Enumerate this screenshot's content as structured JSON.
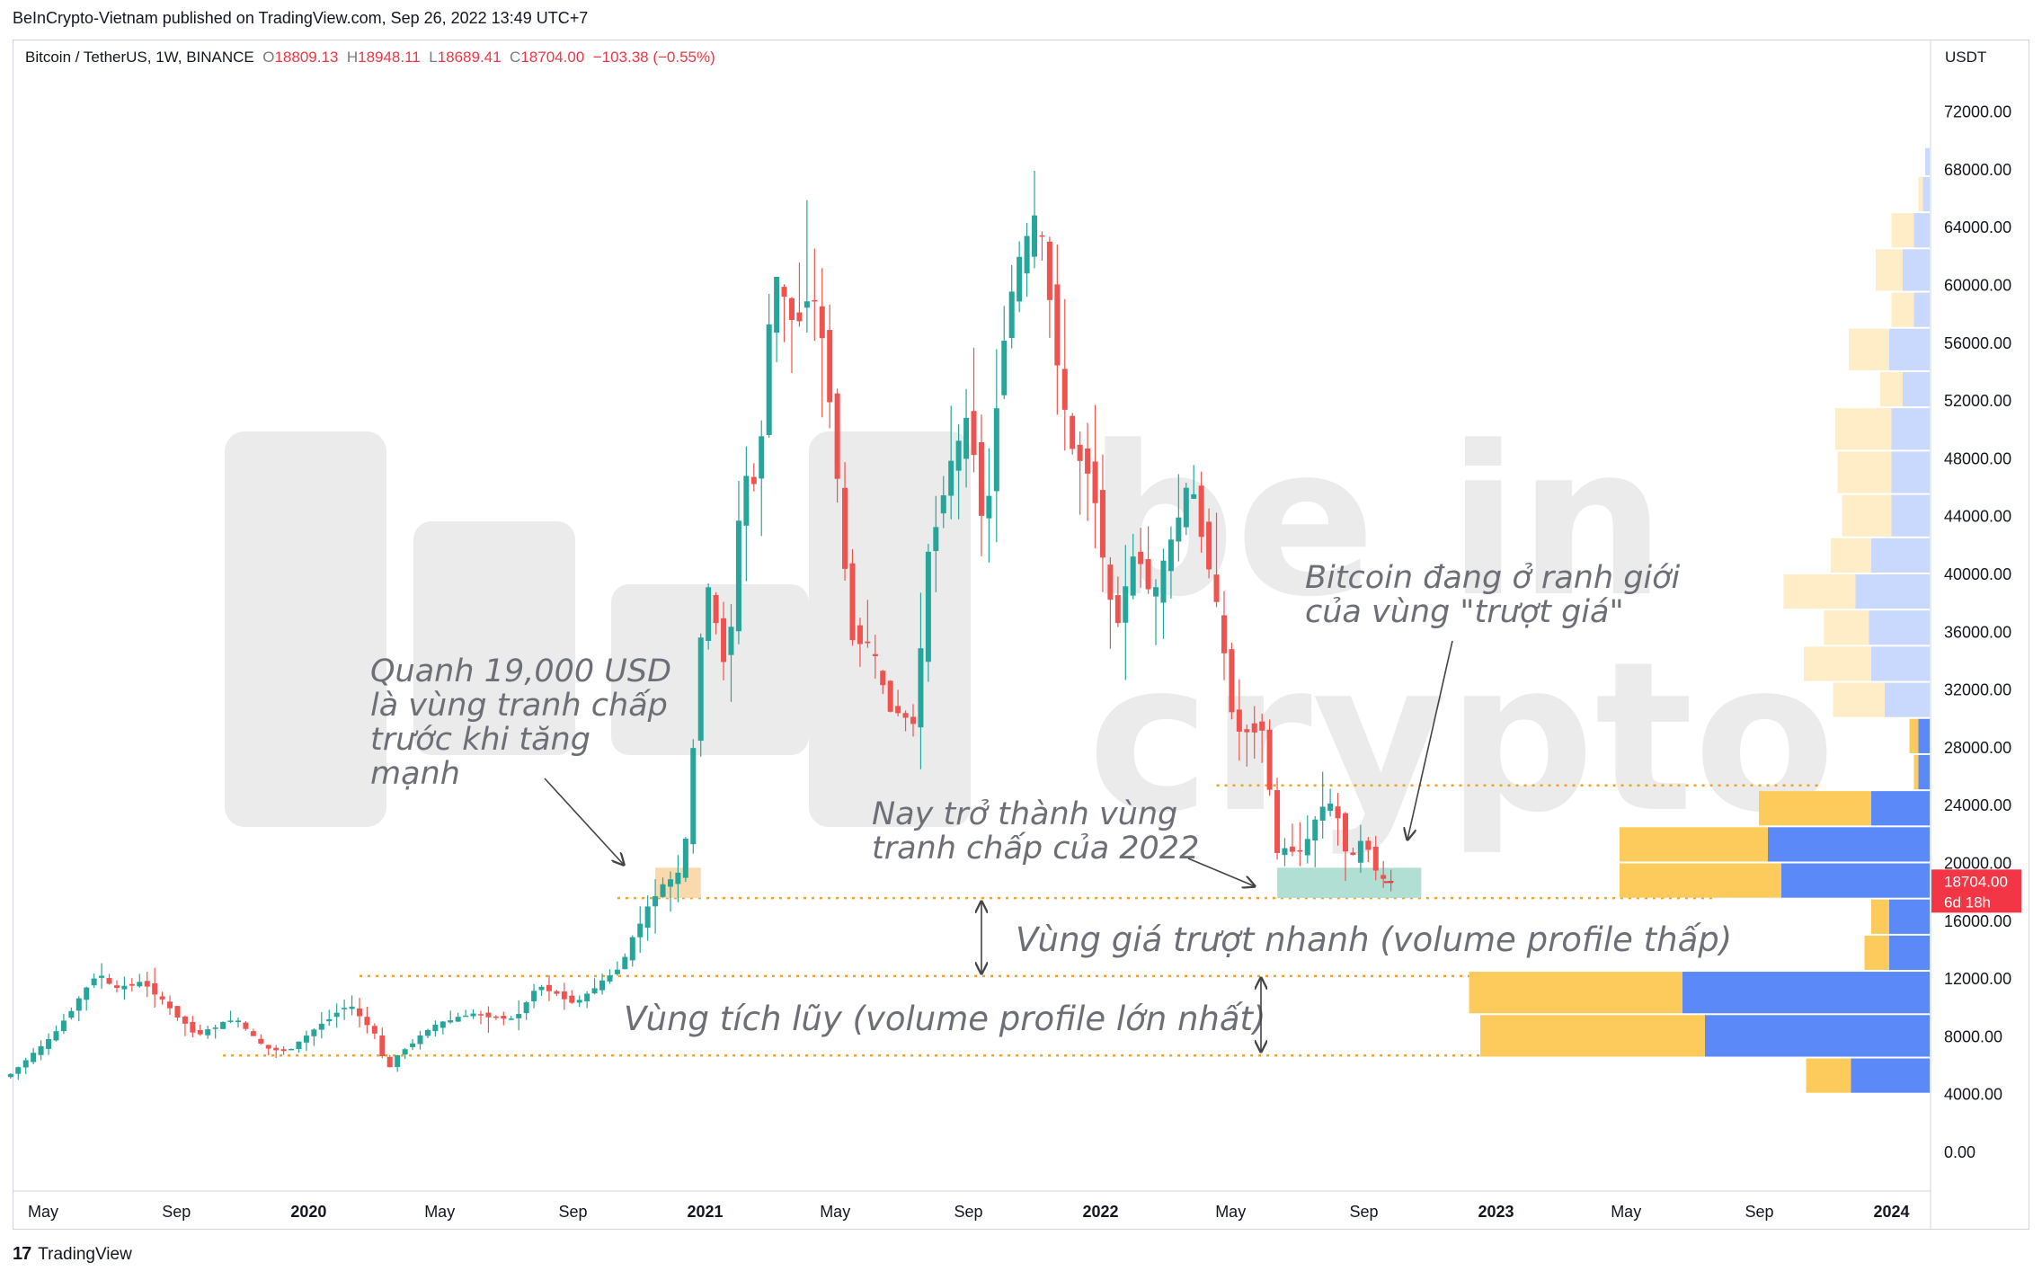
{
  "header": {
    "published": "BeInCrypto-Vietnam published on TradingView.com, Sep 26, 2022 13:49 UTC+7"
  },
  "legend": {
    "symbol": "Bitcoin / TetherUS, 1W, BINANCE",
    "o_label": "O",
    "o_value": "18809.13",
    "h_label": "H",
    "h_value": "18948.11",
    "l_label": "L",
    "l_value": "18689.41",
    "c_label": "C",
    "c_value": "18704.00",
    "change": "−103.38 (−0.55%)"
  },
  "footer": {
    "brand": "TradingView",
    "logo": "17"
  },
  "watermark": {
    "line1": "be in",
    "line2": "crypto"
  },
  "colors": {
    "up": "#26a69a",
    "down": "#ef5350",
    "guide": "#f7a120",
    "vp_up": "#5b8af8",
    "vp_down": "#fccb5c",
    "price_tag": "#f23645"
  },
  "chart_data": {
    "type": "candlestick",
    "title": "Bitcoin / TetherUS, 1W, BINANCE",
    "currency": "USDT",
    "ylim": [
      -2000,
      76000
    ],
    "y_ticks": [
      "72000.00",
      "68000.00",
      "64000.00",
      "60000.00",
      "56000.00",
      "52000.00",
      "48000.00",
      "44000.00",
      "40000.00",
      "36000.00",
      "32000.00",
      "28000.00",
      "24000.00",
      "20000.00",
      "16000.00",
      "12000.00",
      "8000.00",
      "4000.00",
      "0.00"
    ],
    "x_ticks": [
      {
        "label": "May",
        "date": "2019-05"
      },
      {
        "label": "Sep",
        "date": "2019-09"
      },
      {
        "label": "2020",
        "date": "2020-01"
      },
      {
        "label": "May",
        "date": "2020-05"
      },
      {
        "label": "Sep",
        "date": "2020-09"
      },
      {
        "label": "2021",
        "date": "2021-01"
      },
      {
        "label": "May",
        "date": "2021-05"
      },
      {
        "label": "Sep",
        "date": "2021-09"
      },
      {
        "label": "2022",
        "date": "2022-01"
      },
      {
        "label": "May",
        "date": "2022-05"
      },
      {
        "label": "Sep",
        "date": "2022-09"
      },
      {
        "label": "2023",
        "date": "2023-01"
      },
      {
        "label": "May",
        "date": "2023-05"
      },
      {
        "label": "Sep",
        "date": "2023-09"
      },
      {
        "label": "2024",
        "date": "2024-01"
      }
    ],
    "price_tag": {
      "price": "18704.00",
      "countdown": "6d 18h",
      "value": 18704
    },
    "price_path": [
      [
        "2019-04-01",
        5200
      ],
      [
        "2019-05-13",
        8000
      ],
      [
        "2019-06-24",
        12500
      ],
      [
        "2019-07-08",
        11300
      ],
      [
        "2019-08-05",
        11800
      ],
      [
        "2019-09-23",
        8100
      ],
      [
        "2019-10-28",
        9300
      ],
      [
        "2019-11-25",
        7200
      ],
      [
        "2019-12-16",
        7000
      ],
      [
        "2020-01-13",
        8700
      ],
      [
        "2020-02-10",
        10300
      ],
      [
        "2020-03-09",
        7900
      ],
      [
        "2020-03-16",
        5300
      ],
      [
        "2020-03-23",
        6500
      ],
      [
        "2020-04-27",
        8700
      ],
      [
        "2020-06-01",
        9600
      ],
      [
        "2020-07-13",
        9200
      ],
      [
        "2020-08-03",
        11600
      ],
      [
        "2020-09-07",
        10300
      ],
      [
        "2020-10-19",
        12900
      ],
      [
        "2020-11-02",
        15400
      ],
      [
        "2020-11-23",
        18300
      ],
      [
        "2020-12-14",
        19400
      ],
      [
        "2020-12-21",
        23800
      ],
      [
        "2021-01-04",
        40000
      ],
      [
        "2021-01-25",
        33000
      ],
      [
        "2021-02-08",
        47000
      ],
      [
        "2021-02-22",
        46000
      ],
      [
        "2021-03-08",
        61000
      ],
      [
        "2021-03-29",
        57000
      ],
      [
        "2021-04-12",
        60000
      ],
      [
        "2021-04-26",
        55000
      ],
      [
        "2021-05-10",
        44000
      ],
      [
        "2021-05-17",
        36000
      ],
      [
        "2021-06-07",
        35000
      ],
      [
        "2021-06-21",
        31000
      ],
      [
        "2021-07-19",
        29500
      ],
      [
        "2021-07-26",
        40000
      ],
      [
        "2021-08-16",
        47000
      ],
      [
        "2021-09-06",
        51000
      ],
      [
        "2021-09-20",
        42000
      ],
      [
        "2021-10-04",
        55000
      ],
      [
        "2021-10-18",
        61000
      ],
      [
        "2021-11-08",
        65000
      ],
      [
        "2021-11-22",
        57000
      ],
      [
        "2021-12-06",
        49000
      ],
      [
        "2021-12-27",
        47000
      ],
      [
        "2022-01-17",
        36000
      ],
      [
        "2022-02-07",
        42000
      ],
      [
        "2022-02-21",
        38000
      ],
      [
        "2022-03-28",
        46500
      ],
      [
        "2022-04-18",
        39500
      ],
      [
        "2022-05-09",
        29000
      ],
      [
        "2022-06-06",
        29500
      ],
      [
        "2022-06-13",
        20500
      ],
      [
        "2022-06-20",
        21000
      ],
      [
        "2022-07-11",
        20800
      ],
      [
        "2022-07-25",
        23800
      ],
      [
        "2022-08-08",
        24100
      ],
      [
        "2022-08-22",
        20000
      ],
      [
        "2022-09-05",
        21800
      ],
      [
        "2022-09-19",
        18800
      ],
      [
        "2022-09-26",
        18704
      ]
    ],
    "volume_profile": [
      {
        "price_from": 4000,
        "price_to": 6500,
        "up": 0.35,
        "down": 0.2
      },
      {
        "price_from": 6500,
        "price_to": 9500,
        "up": 1.0,
        "down": 1.0
      },
      {
        "price_from": 9500,
        "price_to": 12500,
        "up": 1.1,
        "down": 0.95
      },
      {
        "price_from": 12500,
        "price_to": 15000,
        "up": 0.18,
        "down": 0.11
      },
      {
        "price_from": 15000,
        "price_to": 17500,
        "up": 0.18,
        "down": 0.08
      },
      {
        "price_from": 17500,
        "price_to": 20000,
        "up": 0.66,
        "down": 0.72
      },
      {
        "price_from": 20000,
        "price_to": 22500,
        "up": 0.72,
        "down": 0.66
      },
      {
        "price_from": 22500,
        "price_to": 25000,
        "up": 0.26,
        "down": 0.5
      },
      {
        "price_from": 25000,
        "price_to": 27500,
        "up": 0.05,
        "down": 0.02
      },
      {
        "price_from": 27500,
        "price_to": 30000,
        "up": 0.05,
        "down": 0.04
      },
      {
        "price_from": 30000,
        "price_to": 32500,
        "up": 0.2,
        "down": 0.23
      },
      {
        "price_from": 32500,
        "price_to": 35000,
        "up": 0.26,
        "down": 0.3
      },
      {
        "price_from": 35000,
        "price_to": 37500,
        "up": 0.27,
        "down": 0.2
      },
      {
        "price_from": 37500,
        "price_to": 40000,
        "up": 0.33,
        "down": 0.32
      },
      {
        "price_from": 40000,
        "price_to": 42500,
        "up": 0.26,
        "down": 0.18
      },
      {
        "price_from": 42500,
        "price_to": 45500,
        "up": 0.17,
        "down": 0.22
      },
      {
        "price_from": 45500,
        "price_to": 48500,
        "up": 0.17,
        "down": 0.24
      },
      {
        "price_from": 48500,
        "price_to": 51500,
        "up": 0.17,
        "down": 0.25
      },
      {
        "price_from": 51500,
        "price_to": 54000,
        "up": 0.12,
        "down": 0.1
      },
      {
        "price_from": 54000,
        "price_to": 57000,
        "up": 0.18,
        "down": 0.18
      },
      {
        "price_from": 57000,
        "price_to": 59500,
        "up": 0.07,
        "down": 0.1
      },
      {
        "price_from": 59500,
        "price_to": 62500,
        "up": 0.12,
        "down": 0.12
      },
      {
        "price_from": 62500,
        "price_to": 65000,
        "up": 0.07,
        "down": 0.1
      },
      {
        "price_from": 65000,
        "price_to": 67500,
        "up": 0.03,
        "down": 0.02
      },
      {
        "price_from": 67500,
        "price_to": 69500,
        "up": 0.02,
        "down": 0.0
      }
    ],
    "zones": [
      {
        "from_date": "2020-11-16",
        "to_date": "2020-12-28",
        "low": 17600,
        "high": 19700,
        "color": "#fbd5a5"
      },
      {
        "from_date": "2022-06-13",
        "to_date": "2022-10-24",
        "low": 17600,
        "high": 19700,
        "color": "#a8dccf"
      }
    ],
    "levels": [
      {
        "price": 17600,
        "from_date": "2020-10-12",
        "to_date": "2023-07-24"
      },
      {
        "price": 12200,
        "from_date": "2020-02-17",
        "to_date": "2023-02-20"
      },
      {
        "price": 6700,
        "from_date": "2019-10-14",
        "to_date": "2023-04-03"
      },
      {
        "price": 25400,
        "from_date": "2022-04-18",
        "to_date": "2023-10-30"
      }
    ],
    "annotations": {
      "a1": [
        "Quanh 19,000 USD",
        "là vùng tranh chấp",
        "trước khi tăng",
        "mạnh"
      ],
      "a2": [
        "Nay trở thành vùng",
        "tranh chấp của 2022"
      ],
      "a3": [
        "Bitcoin đang ở ranh giới",
        "của vùng \"trượt giá\""
      ],
      "a4": "Vùng giá trượt nhanh (volume profile thấp)",
      "a5": "Vùng tích lũy (volume profile lớn nhất)"
    }
  }
}
